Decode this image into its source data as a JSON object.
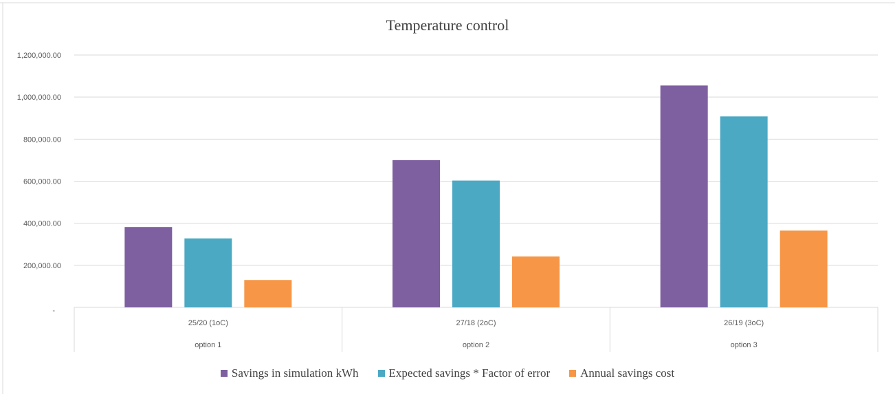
{
  "chart_data": {
    "type": "bar",
    "title": "Temperature control",
    "categories": [
      "25/20 (1oC)",
      "27/18 (2oC)",
      "26/19 (3oC)"
    ],
    "group_labels": [
      "option 1",
      "option 2",
      "option 3"
    ],
    "series": [
      {
        "name": "Savings in simulation kWh",
        "color": "#7E5FA0",
        "values": [
          382000,
          700000,
          1055000
        ]
      },
      {
        "name": "Expected savings * Factor of error",
        "color": "#4BA9C4",
        "values": [
          328000,
          603000,
          908000
        ]
      },
      {
        "name": "Annual savings cost",
        "color": "#F79646",
        "values": [
          130000,
          242000,
          365000
        ]
      }
    ],
    "y_ticks": [
      "-",
      "200,000.00",
      "400,000.00",
      "600,000.00",
      "800,000.00",
      "1,000,000.00",
      "1,200,000.00"
    ],
    "ylim": [
      0,
      1200000
    ],
    "grid": true,
    "legend_position": "bottom"
  }
}
